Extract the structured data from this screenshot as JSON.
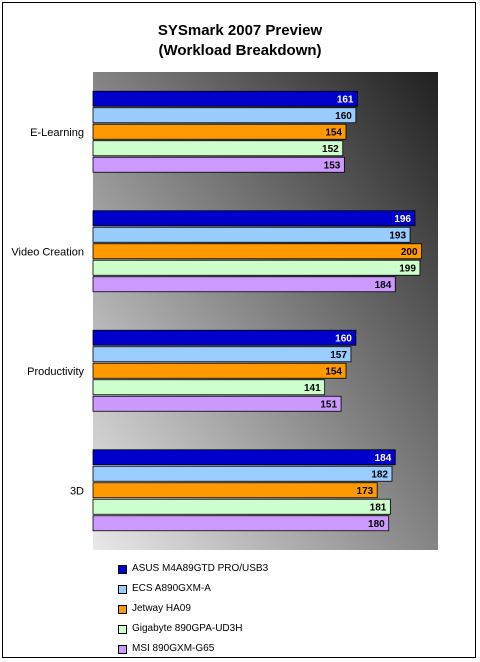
{
  "chart_data": {
    "type": "bar",
    "orientation": "horizontal",
    "title": "SYSmark 2007 Preview",
    "subtitle": "(Workload Breakdown)",
    "categories": [
      "E-Learning",
      "Video Creation",
      "Productivity",
      "3D"
    ],
    "series": [
      {
        "name": "ASUS M4A89GTD PRO/USB3",
        "color": "#0000cc",
        "label_color": "#ffffff",
        "values": [
          161,
          196,
          160,
          184
        ]
      },
      {
        "name": "ECS A890GXM-A",
        "color": "#99ccff",
        "label_color": "#000000",
        "values": [
          160,
          193,
          157,
          182
        ]
      },
      {
        "name": "Jetway HA09",
        "color": "#ff9900",
        "label_color": "#000000",
        "values": [
          154,
          200,
          154,
          173
        ]
      },
      {
        "name": "Gigabyte 890GPA-UD3H",
        "color": "#ccffcc",
        "label_color": "#000000",
        "values": [
          152,
          199,
          141,
          181
        ]
      },
      {
        "name": "MSI 890GXM-G65",
        "color": "#cc99ff",
        "label_color": "#000000",
        "values": [
          153,
          184,
          151,
          180
        ]
      }
    ],
    "xlim": [
      0,
      210
    ],
    "grid": false,
    "legend_position": "bottom",
    "plot_background": [
      "#202020",
      "#e8e8e8"
    ]
  }
}
